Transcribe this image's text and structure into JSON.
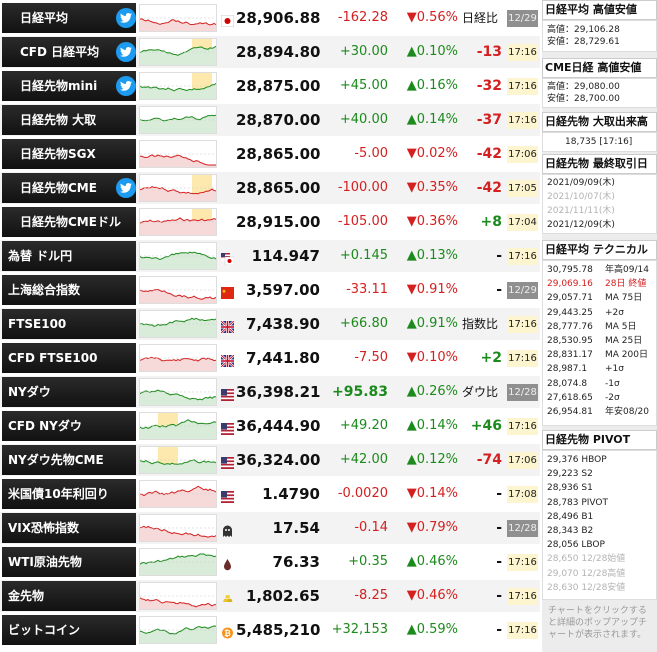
{
  "rows": [
    {
      "name": "日経平均",
      "twitter": true,
      "flag": "jp",
      "price": "28,906.88",
      "change": "-162.28",
      "percent": "▼0.56%",
      "diff_label": "日経比",
      "diff": "",
      "time": "12/29",
      "time_gray": true,
      "trend": "dn",
      "price_red": false
    },
    {
      "name": "CFD 日経平均",
      "twitter": true,
      "flag": "",
      "price": "28,894.80",
      "change": "+30.00",
      "percent": "▲0.10%",
      "diff_label": "",
      "diff": "-13",
      "time": "17:16",
      "time_gray": false,
      "trend": "up"
    },
    {
      "name": "日経先物mini",
      "twitter": true,
      "flag": "",
      "price": "28,875.00",
      "change": "+45.00",
      "percent": "▲0.16%",
      "diff_label": "",
      "diff": "-32",
      "time": "17:16",
      "time_gray": false,
      "trend": "up"
    },
    {
      "name": "日経先物 大取",
      "twitter": false,
      "flag": "",
      "price": "28,870.00",
      "change": "+40.00",
      "percent": "▲0.14%",
      "diff_label": "",
      "diff": "-37",
      "time": "17:16",
      "time_gray": false,
      "trend": "up"
    },
    {
      "name": "日経先物SGX",
      "twitter": false,
      "flag": "",
      "price": "28,865.00",
      "change": "-5.00",
      "percent": "▼0.02%",
      "diff_label": "",
      "diff": "-42",
      "time": "17:06",
      "time_gray": false,
      "trend": "dn"
    },
    {
      "name": "日経先物CME",
      "twitter": true,
      "flag": "",
      "price": "28,865.00",
      "change": "-100.00",
      "percent": "▼0.35%",
      "diff_label": "",
      "diff": "-42",
      "time": "17:05",
      "time_gray": false,
      "trend": "dn"
    },
    {
      "name": "日経先物CMEドル",
      "twitter": false,
      "flag": "",
      "price": "28,915.00",
      "change": "-105.00",
      "percent": "▼0.36%",
      "diff_label": "",
      "diff": "+8",
      "time": "17:04",
      "time_gray": false,
      "trend": "dn"
    },
    {
      "name": "為替 ドル円",
      "twitter": false,
      "flag": "usjp",
      "price": "114.947",
      "change": "+0.145",
      "percent": "▲0.13%",
      "diff_label": "",
      "diff": "-",
      "time": "17:16",
      "time_gray": false,
      "trend": "up"
    },
    {
      "name": "上海総合指数",
      "twitter": false,
      "flag": "cn",
      "price": "3,597.00",
      "change": "-33.11",
      "percent": "▼0.91%",
      "diff_label": "",
      "diff": "-",
      "time": "12/29",
      "time_gray": true,
      "trend": "dn"
    },
    {
      "name": "FTSE100",
      "twitter": false,
      "flag": "uk",
      "price": "7,438.90",
      "change": "+66.80",
      "percent": "▲0.91%",
      "diff_label": "指数比",
      "diff": "",
      "time": "17:16",
      "time_gray": false,
      "trend": "up"
    },
    {
      "name": "CFD FTSE100",
      "twitter": false,
      "flag": "uk",
      "price": "7,441.80",
      "change": "-7.50",
      "percent": "▼0.10%",
      "diff_label": "",
      "diff": "+2",
      "time": "17:16",
      "time_gray": false,
      "trend": "dn"
    },
    {
      "name": "NYダウ",
      "twitter": false,
      "flag": "us",
      "price": "36,398.21",
      "change": "+95.83",
      "percent": "▲0.26%",
      "diff_label": "ダウ比",
      "diff": "",
      "time": "12/28",
      "time_gray": true,
      "trend": "up",
      "bold_change": true
    },
    {
      "name": "CFD NYダウ",
      "twitter": false,
      "flag": "us",
      "price": "36,444.90",
      "change": "+49.20",
      "percent": "▲0.14%",
      "diff_label": "",
      "diff": "+46",
      "time": "17:16",
      "time_gray": false,
      "trend": "up"
    },
    {
      "name": "NYダウ先物CME",
      "twitter": false,
      "flag": "us",
      "price": "36,324.00",
      "change": "+42.00",
      "percent": "▲0.12%",
      "diff_label": "",
      "diff": "-74",
      "time": "17:06",
      "time_gray": false,
      "trend": "up"
    },
    {
      "name": "米国債10年利回り",
      "twitter": false,
      "flag": "us",
      "price": "1.4790",
      "change": "-0.0020",
      "percent": "▼0.14%",
      "diff_label": "",
      "diff": "-",
      "time": "17:08",
      "time_gray": false,
      "trend": "dn"
    },
    {
      "name": "VIX恐怖指数",
      "twitter": false,
      "flag": "ghost",
      "price": "17.54",
      "change": "-0.14",
      "percent": "▼0.79%",
      "diff_label": "",
      "diff": "-",
      "time": "12/28",
      "time_gray": true,
      "trend": "dn"
    },
    {
      "name": "WTI原油先物",
      "twitter": false,
      "flag": "oil",
      "price": "76.33",
      "change": "+0.35",
      "percent": "▲0.46%",
      "diff_label": "",
      "diff": "-",
      "time": "17:16",
      "time_gray": false,
      "trend": "up"
    },
    {
      "name": "金先物",
      "twitter": false,
      "flag": "gold",
      "price": "1,802.65",
      "change": "-8.25",
      "percent": "▼0.46%",
      "diff_label": "",
      "diff": "-",
      "time": "17:16",
      "time_gray": false,
      "trend": "dn"
    },
    {
      "name": "ビットコイン",
      "twitter": false,
      "flag": "btc",
      "price": "5,485,210",
      "change": "+32,153",
      "percent": "▲0.59%",
      "diff_label": "",
      "diff": "-",
      "time": "17:16",
      "time_gray": false,
      "trend": "up"
    }
  ],
  "panel": {
    "nikkei_hl": {
      "title": "日経平均 高値安値",
      "high": "高値：29,106.28",
      "low": "安値：28,729.61"
    },
    "cme_hl": {
      "title": "CME日経 高値安値",
      "high": "高値：29,080.00",
      "low": "安値：28,700.00"
    },
    "osaka_vol": {
      "title": "日経先物 大取出来高",
      "value": "18,735 [17:16]"
    },
    "last_trade": {
      "title": "日経先物 最終取引日",
      "dates": [
        "2021/09/09(木)",
        "2021/10/07(木)",
        "2021/11/11(木)",
        "2021/12/09(木)"
      ],
      "dates_gray": [
        false,
        true,
        true,
        false
      ]
    },
    "technical": {
      "title": "日経平均 テクニカル",
      "items": [
        {
          "value": "30,795.78",
          "label": "年高09/14",
          "style": ""
        },
        {
          "value": "29,069.16",
          "label": "28日 終値",
          "style": "r"
        },
        {
          "value": "29,057.71",
          "label": "MA 75日",
          "style": ""
        },
        {
          "value": "29,443.25",
          "label": "+2σ",
          "style": ""
        },
        {
          "value": "28,777.76",
          "label": "MA 5日",
          "style": ""
        },
        {
          "value": "28,530.95",
          "label": "MA 25日",
          "style": ""
        },
        {
          "value": "28,831.17",
          "label": "MA 200日",
          "style": ""
        },
        {
          "value": "28,987.1",
          "label": "+1σ",
          "style": ""
        },
        {
          "value": "28,074.8",
          "label": "-1σ",
          "style": ""
        },
        {
          "value": "27,618.65",
          "label": "-2σ",
          "style": ""
        },
        {
          "value": "26,954.81",
          "label": "年安08/20",
          "style": ""
        }
      ]
    },
    "pivot": {
      "title": "日経先物 PIVOT",
      "items": [
        {
          "text": "29,376 HBOP",
          "gray": false
        },
        {
          "text": "29,223 S2",
          "gray": false
        },
        {
          "text": "28,936 S1",
          "gray": false
        },
        {
          "text": "28,783 PIVOT",
          "gray": false
        },
        {
          "text": "28,496 B1",
          "gray": false
        },
        {
          "text": "28,343 B2",
          "gray": false
        },
        {
          "text": "28,056 LBOP",
          "gray": false
        },
        {
          "text": "28,650 12/28始値",
          "gray": true
        },
        {
          "text": "29,070 12/28高値",
          "gray": true
        },
        {
          "text": "28,630 12/28安値",
          "gray": true
        }
      ]
    },
    "note": "チャートをクリックすると詳細のポップアップチャートが表示されます。"
  },
  "colors": {
    "up": "#1c8a1c",
    "down": "#d42020",
    "time_bg": "#fdf5cf",
    "twitter": "#1d9bf0"
  }
}
